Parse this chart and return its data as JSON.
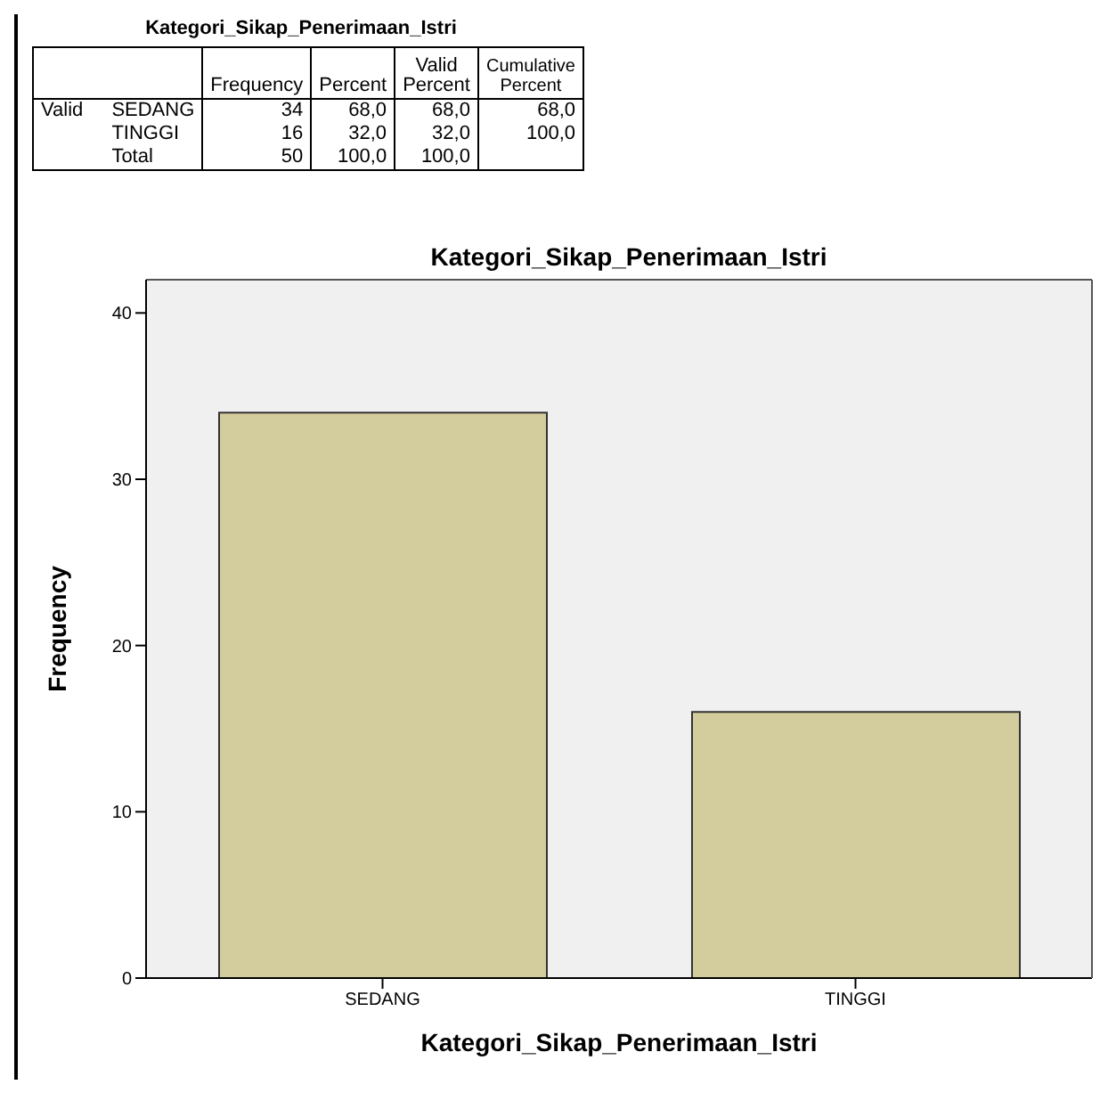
{
  "chart_data": [
    {
      "type": "other",
      "title": "Kategori_Sikap_Penerimaan_Istri",
      "categories": [
        null,
        null,
        "Frequency",
        "Percent",
        "Valid Percent",
        "Cumulative Percent"
      ],
      "cell_labels": [
        [
          "Valid",
          "SEDANG",
          "34",
          "68,0",
          "68,0",
          "68,0"
        ],
        [
          null,
          "TINGGI",
          "16",
          "32,0",
          "32,0",
          "100,0"
        ],
        [
          null,
          "Total",
          "50",
          "100,0",
          "100,0",
          null
        ]
      ]
    },
    {
      "type": "bar",
      "title": "Kategori_Sikap_Penerimaan_Istri",
      "xlabel": "Kategori_Sikap_Penerimaan_Istri",
      "ylabel": "Frequency",
      "categories": [
        "SEDANG",
        "TINGGI"
      ],
      "values": [
        34,
        16
      ],
      "color": "#d3cc9c",
      "ylim": [
        0,
        42
      ],
      "yticks": [
        0,
        10,
        20,
        30,
        40
      ]
    }
  ]
}
